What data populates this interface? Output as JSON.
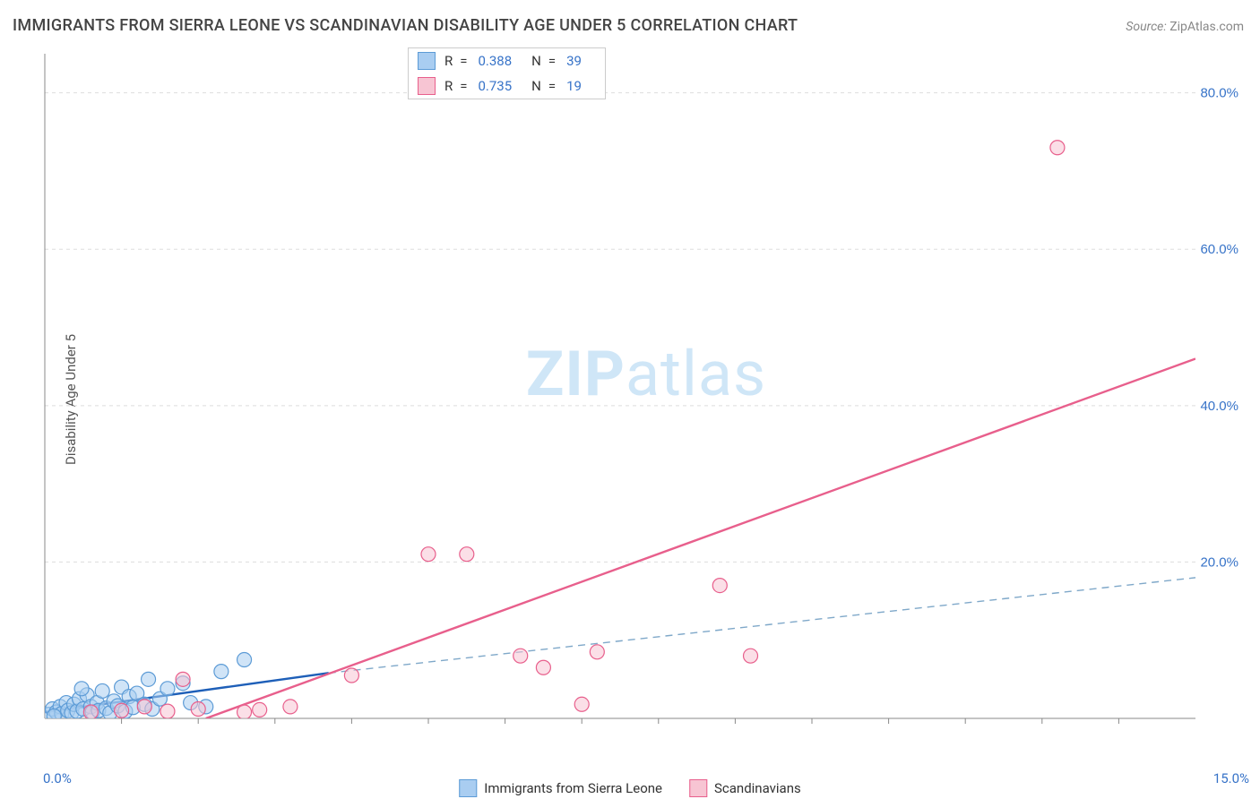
{
  "title": "IMMIGRANTS FROM SIERRA LEONE VS SCANDINAVIAN DISABILITY AGE UNDER 5 CORRELATION CHART",
  "source_label": "Source:",
  "source_value": "ZipAtlas.com",
  "ylabel": "Disability Age Under 5",
  "watermark": {
    "strong": "ZIP",
    "rest": "atlas"
  },
  "chart": {
    "type": "scatter",
    "xlim": [
      0,
      15
    ],
    "ylim": [
      0,
      85
    ],
    "x_origin_label": "0.0%",
    "x_max_label": "15.0%",
    "y_ticks": [
      20,
      40,
      60,
      80
    ],
    "y_tick_labels": [
      "20.0%",
      "40.0%",
      "60.0%",
      "80.0%"
    ],
    "x_minor_ticks": [
      1,
      2,
      3,
      4,
      5,
      6,
      7,
      8,
      9,
      10,
      11,
      12,
      13,
      14
    ],
    "grid_color": "#dddddd",
    "grid_dash": "4,4",
    "axis_color": "#888888",
    "axis_label_color": "#3773c8",
    "background_color": "#ffffff",
    "marker_radius": 8,
    "marker_opacity": 0.55,
    "series": [
      {
        "id": "sierra",
        "label": "Immigrants from Sierra Leone",
        "color_fill": "#a9cdf1",
        "color_stroke": "#5c9bd6",
        "R": "0.388",
        "N": "39",
        "points": [
          [
            0.05,
            0.5
          ],
          [
            0.1,
            1.2
          ],
          [
            0.15,
            0.8
          ],
          [
            0.2,
            1.5
          ],
          [
            0.22,
            0.6
          ],
          [
            0.28,
            2.0
          ],
          [
            0.3,
            1.0
          ],
          [
            0.35,
            0.7
          ],
          [
            0.38,
            1.8
          ],
          [
            0.42,
            0.9
          ],
          [
            0.45,
            2.5
          ],
          [
            0.5,
            1.2
          ],
          [
            0.55,
            3.0
          ],
          [
            0.6,
            1.5
          ],
          [
            0.62,
            0.8
          ],
          [
            0.68,
            2.0
          ],
          [
            0.7,
            1.0
          ],
          [
            0.75,
            3.5
          ],
          [
            0.8,
            1.3
          ],
          [
            0.85,
            0.7
          ],
          [
            0.9,
            2.2
          ],
          [
            0.95,
            1.6
          ],
          [
            1.0,
            4.0
          ],
          [
            1.05,
            0.9
          ],
          [
            1.1,
            2.8
          ],
          [
            1.15,
            1.4
          ],
          [
            1.2,
            3.2
          ],
          [
            1.3,
            1.8
          ],
          [
            1.35,
            5.0
          ],
          [
            1.4,
            1.2
          ],
          [
            1.5,
            2.5
          ],
          [
            1.6,
            3.8
          ],
          [
            1.8,
            4.5
          ],
          [
            1.9,
            2.0
          ],
          [
            2.1,
            1.5
          ],
          [
            2.3,
            6.0
          ],
          [
            2.6,
            7.5
          ],
          [
            0.12,
            0.3
          ],
          [
            0.48,
            3.8
          ]
        ],
        "trend": {
          "solid": {
            "x1": 0,
            "y1": 0.8,
            "x2": 3.7,
            "y2": 5.8,
            "color": "#1e5fb8",
            "width": 2.4
          },
          "dashed": {
            "x1": 3.7,
            "y1": 5.8,
            "x2": 15,
            "y2": 18.0,
            "color": "#7fa8c9",
            "width": 1.4,
            "dash": "8,6"
          }
        }
      },
      {
        "id": "scand",
        "label": "Scandinavians",
        "color_fill": "#f7c5d3",
        "color_stroke": "#e85f8c",
        "R": "0.735",
        "N": "19",
        "points": [
          [
            0.6,
            0.8
          ],
          [
            1.0,
            1.0
          ],
          [
            1.3,
            1.5
          ],
          [
            1.6,
            0.9
          ],
          [
            1.8,
            5.0
          ],
          [
            2.0,
            1.2
          ],
          [
            2.6,
            0.8
          ],
          [
            2.8,
            1.1
          ],
          [
            3.2,
            1.5
          ],
          [
            4.0,
            5.5
          ],
          [
            5.0,
            21.0
          ],
          [
            5.5,
            21.0
          ],
          [
            6.2,
            8.0
          ],
          [
            6.5,
            6.5
          ],
          [
            7.0,
            1.8
          ],
          [
            7.2,
            8.5
          ],
          [
            8.8,
            17.0
          ],
          [
            9.2,
            8.0
          ],
          [
            13.2,
            73.0
          ]
        ],
        "trend": {
          "solid": {
            "x1": 2.1,
            "y1": 0,
            "x2": 15,
            "y2": 46.0,
            "color": "#e85f8c",
            "width": 2.4
          }
        }
      }
    ]
  },
  "legend_top_letters": {
    "r": "R",
    "eq": "=",
    "n": "N"
  }
}
